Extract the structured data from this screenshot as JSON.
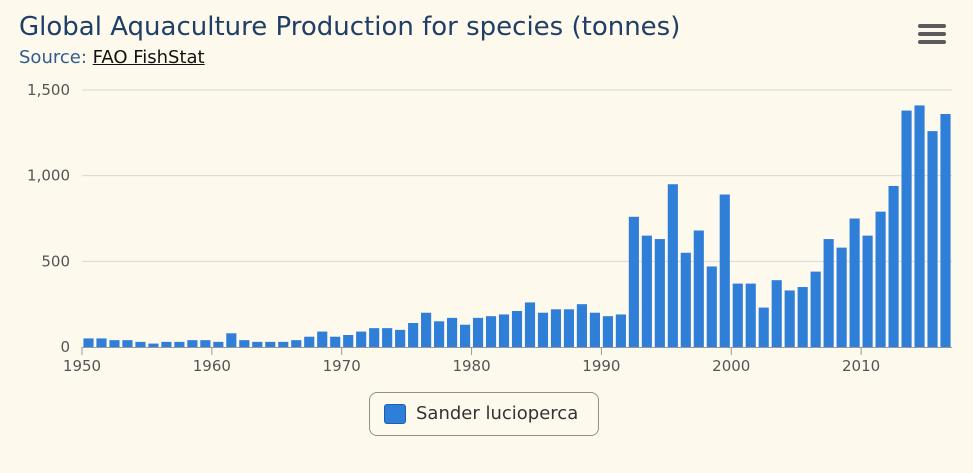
{
  "title": "Global Aquaculture Production for species (tonnes)",
  "subtitle_prefix": "Source:",
  "subtitle_link": "FAO FishStat",
  "menu_icon": "hamburger-menu-icon",
  "colors": {
    "series": "#2f7ed8",
    "grid": "#d8d8d8",
    "axis": "#999999"
  },
  "chart_data": {
    "type": "bar",
    "title": "Global Aquaculture Production for species (tonnes)",
    "xlim": [
      1950,
      2016
    ],
    "ylim": [
      0,
      1500
    ],
    "y_ticks": [
      0,
      500,
      1000,
      1500
    ],
    "y_tick_labels": [
      "0",
      "500",
      "1,000",
      "1,500"
    ],
    "x_ticks": [
      1950,
      1960,
      1970,
      1980,
      1990,
      2000,
      2010
    ],
    "x_tick_labels": [
      "1950",
      "1960",
      "1970",
      "1980",
      "1990",
      "2000",
      "2010"
    ],
    "grid": true,
    "legend_position": "bottom-center",
    "categories": [
      1950,
      1951,
      1952,
      1953,
      1954,
      1955,
      1956,
      1957,
      1958,
      1959,
      1960,
      1961,
      1962,
      1963,
      1964,
      1965,
      1966,
      1967,
      1968,
      1969,
      1970,
      1971,
      1972,
      1973,
      1974,
      1975,
      1976,
      1977,
      1978,
      1979,
      1980,
      1981,
      1982,
      1983,
      1984,
      1985,
      1986,
      1987,
      1988,
      1989,
      1990,
      1991,
      1992,
      1993,
      1994,
      1995,
      1996,
      1997,
      1998,
      1999,
      2000,
      2001,
      2002,
      2003,
      2004,
      2005,
      2006,
      2007,
      2008,
      2009,
      2010,
      2011,
      2012,
      2013,
      2014,
      2015,
      2016
    ],
    "series": [
      {
        "name": "Sander lucioperca",
        "values": [
          50,
          50,
          40,
          40,
          30,
          20,
          30,
          30,
          40,
          40,
          30,
          80,
          40,
          30,
          30,
          30,
          40,
          60,
          90,
          60,
          70,
          90,
          110,
          110,
          100,
          140,
          200,
          150,
          170,
          130,
          170,
          180,
          190,
          210,
          260,
          200,
          220,
          220,
          250,
          200,
          180,
          190,
          760,
          650,
          630,
          950,
          550,
          680,
          470,
          890,
          370,
          370,
          230,
          390,
          330,
          350,
          440,
          630,
          580,
          750,
          650,
          790,
          940,
          1380,
          1410,
          1260,
          1360
        ]
      }
    ]
  }
}
